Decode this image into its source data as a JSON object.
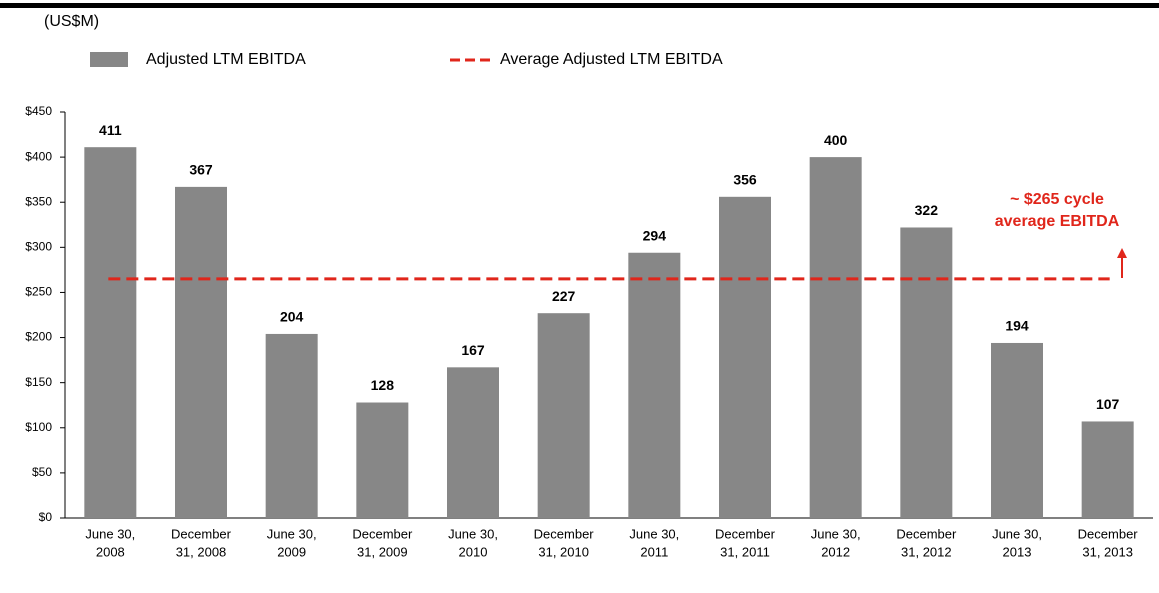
{
  "chart_data": {
    "type": "bar",
    "unit_label": "(US$M)",
    "categories": [
      [
        "June 30,",
        "2008"
      ],
      [
        "December",
        "31, 2008"
      ],
      [
        "June 30,",
        "2009"
      ],
      [
        "December",
        "31, 2009"
      ],
      [
        "June 30,",
        "2010"
      ],
      [
        "December",
        "31, 2010"
      ],
      [
        "June 30,",
        "2011"
      ],
      [
        "December",
        "31, 2011"
      ],
      [
        "June 30,",
        "2012"
      ],
      [
        "December",
        "31, 2012"
      ],
      [
        "June 30,",
        "2013"
      ],
      [
        "December",
        "31, 2013"
      ]
    ],
    "series": [
      {
        "name": "Adjusted LTM EBITDA",
        "color": "#878787",
        "values": [
          411,
          367,
          204,
          128,
          167,
          227,
          294,
          356,
          400,
          322,
          194,
          107
        ]
      }
    ],
    "average": {
      "name": "Average Adjusted LTM EBITDA",
      "color": "#e0261b",
      "value": 265,
      "annotation": [
        "~ $265 cycle",
        "average EBITDA"
      ]
    },
    "ylim": [
      0,
      450
    ],
    "yticks": [
      {
        "value": 0,
        "label": "$0"
      },
      {
        "value": 50,
        "label": "$50"
      },
      {
        "value": 100,
        "label": "$100"
      },
      {
        "value": 150,
        "label": "$150"
      },
      {
        "value": 200,
        "label": "$200"
      },
      {
        "value": 250,
        "label": "$250"
      },
      {
        "value": 300,
        "label": "$300"
      },
      {
        "value": 350,
        "label": "$350"
      },
      {
        "value": 400,
        "label": "$400"
      },
      {
        "value": 450,
        "label": "$450"
      }
    ]
  }
}
